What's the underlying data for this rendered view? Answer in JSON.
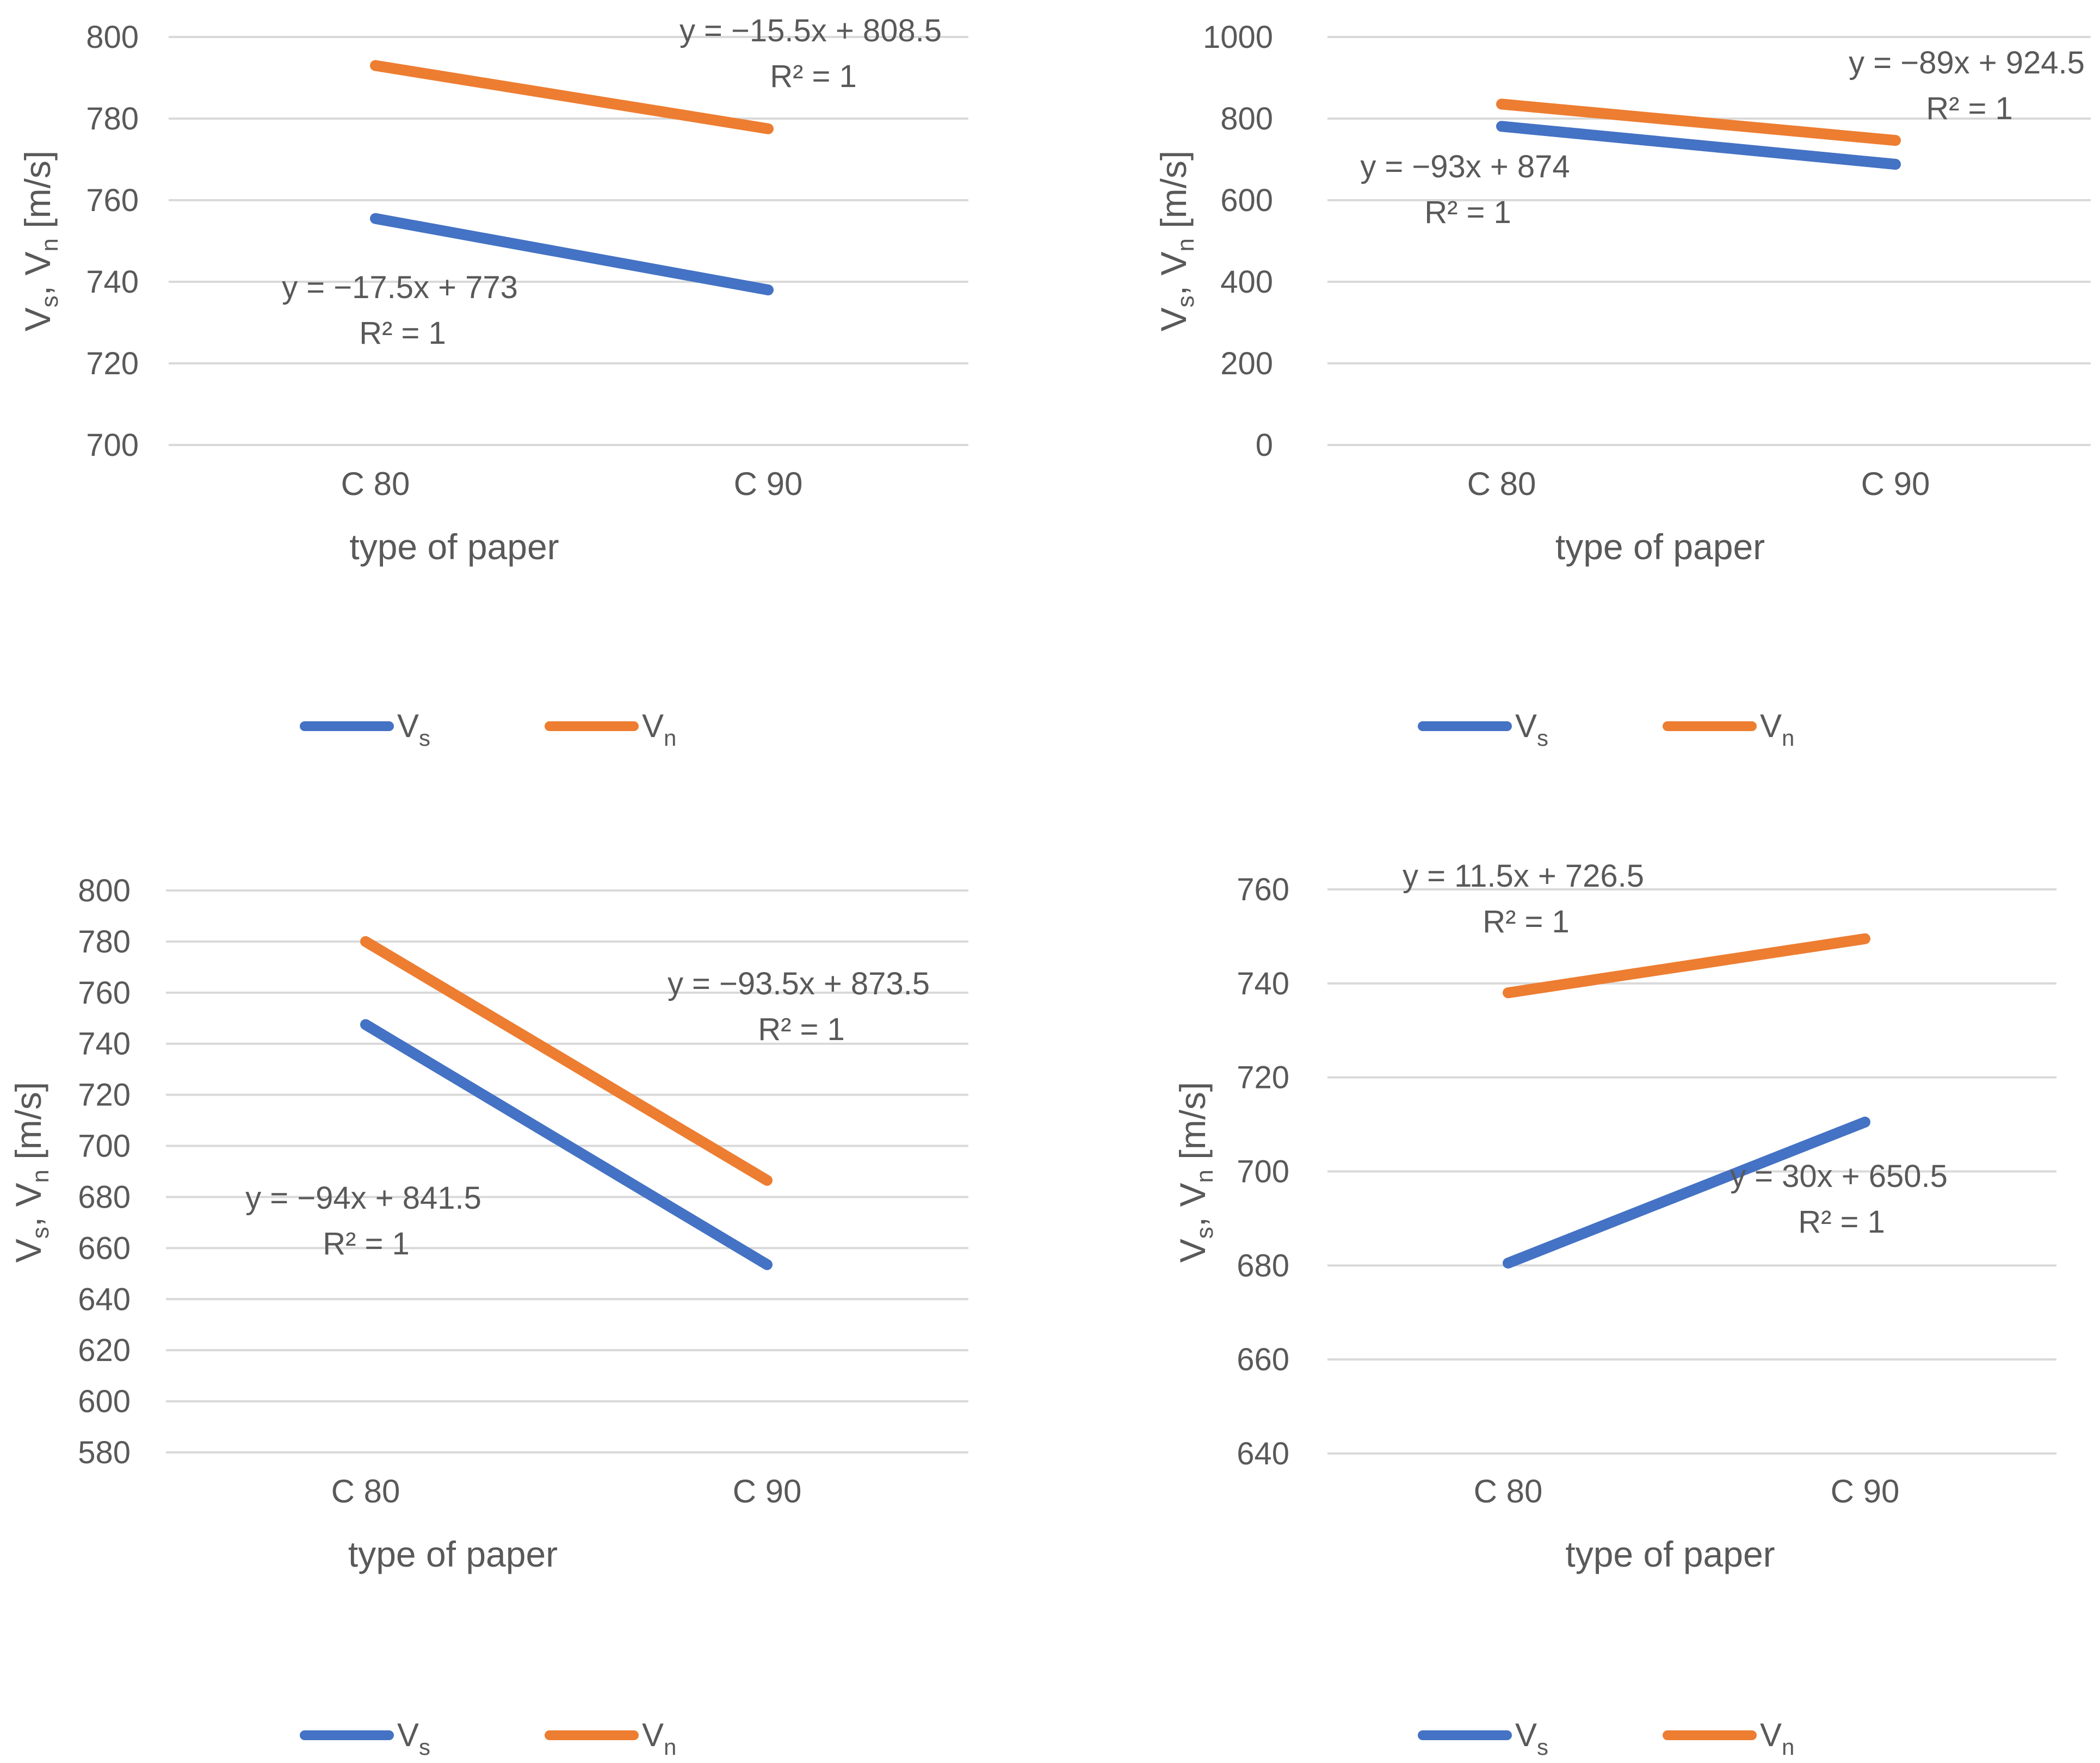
{
  "colors": {
    "vs": "#4472c4",
    "vn": "#ed7d31",
    "grid": "#d9d9d9",
    "text": "#595959"
  },
  "chart_data": [
    {
      "type": "line",
      "title": "",
      "categories": [
        "C 80",
        "C 90"
      ],
      "xlabel": "type of paper",
      "ylabel": {
        "main": "V",
        "sub1": "s",
        "mid": ", V",
        "sub2": "n",
        "unit": " [m/s]"
      },
      "ylim": [
        700,
        800
      ],
      "ystep": 20,
      "ticks": [
        "700",
        "720",
        "740",
        "760",
        "780",
        "800"
      ],
      "grid": true,
      "legend": {
        "position": "bottom",
        "entries": [
          {
            "main": "V",
            "sub": "s"
          },
          {
            "main": "V",
            "sub": "n"
          }
        ]
      },
      "series": [
        {
          "name": "Vs",
          "values": [
            755.5,
            738
          ],
          "trend": {
            "eq": "y = −17.5x + 773",
            "r2": "R² = 1"
          }
        },
        {
          "name": "Vn",
          "values": [
            793,
            777.5
          ],
          "trend": {
            "eq": "y = −15.5x + 808.5",
            "r2": "R² = 1"
          }
        }
      ]
    },
    {
      "type": "line",
      "title": "",
      "categories": [
        "C 80",
        "C 90"
      ],
      "xlabel": "type of paper",
      "ylabel": {
        "main": "V",
        "sub1": "s",
        "mid": ", V",
        "sub2": "n",
        "unit": " [m/s]"
      },
      "ylim": [
        0,
        1000
      ],
      "ystep": 200,
      "ticks": [
        "0",
        "200",
        "400",
        "600",
        "800",
        "1000"
      ],
      "grid": true,
      "legend": {
        "position": "bottom",
        "entries": [
          {
            "main": "V",
            "sub": "s"
          },
          {
            "main": "V",
            "sub": "n"
          }
        ]
      },
      "series": [
        {
          "name": "Vs",
          "values": [
            781,
            688
          ],
          "trend": {
            "eq": "y = −93x + 874",
            "r2": "R² = 1"
          }
        },
        {
          "name": "Vn",
          "values": [
            835.5,
            746.5
          ],
          "trend": {
            "eq": "y = −89x + 924.5",
            "r2": "R² = 1"
          }
        }
      ]
    },
    {
      "type": "line",
      "title": "",
      "categories": [
        "C 80",
        "C 90"
      ],
      "xlabel": "type of paper",
      "ylabel": {
        "main": "V",
        "sub1": "s",
        "mid": ", V",
        "sub2": "n",
        "unit": " [m/s]"
      },
      "ylim": [
        580,
        800
      ],
      "ystep": 20,
      "ticks": [
        "580",
        "600",
        "620",
        "640",
        "660",
        "680",
        "700",
        "720",
        "740",
        "760",
        "780",
        "800"
      ],
      "grid": true,
      "legend": {
        "position": "bottom",
        "entries": [
          {
            "main": "V",
            "sub": "s"
          },
          {
            "main": "V",
            "sub": "n"
          }
        ]
      },
      "series": [
        {
          "name": "Vs",
          "values": [
            747.5,
            653.5
          ],
          "trend": {
            "eq": "y = −94x + 841.5",
            "r2": "R² = 1"
          }
        },
        {
          "name": "Vn",
          "values": [
            780,
            686.5
          ],
          "trend": {
            "eq": "y = −93.5x + 873.5",
            "r2": "R² = 1"
          }
        }
      ]
    },
    {
      "type": "line",
      "title": "",
      "categories": [
        "C 80",
        "C 90"
      ],
      "xlabel": "type of paper",
      "ylabel": {
        "main": "V",
        "sub1": "s",
        "mid": ", V",
        "sub2": "n",
        "unit": " [m/s]"
      },
      "ylim": [
        640,
        760
      ],
      "ystep": 20,
      "ticks": [
        "640",
        "660",
        "680",
        "700",
        "720",
        "740",
        "760"
      ],
      "grid": true,
      "legend": {
        "position": "bottom",
        "entries": [
          {
            "main": "V",
            "sub": "s"
          },
          {
            "main": "V",
            "sub": "n"
          }
        ]
      },
      "series": [
        {
          "name": "Vs",
          "values": [
            680.5,
            710.5
          ],
          "trend": {
            "eq": "y = 30x + 650.5",
            "r2": "R² = 1"
          }
        },
        {
          "name": "Vn",
          "values": [
            738,
            749.5
          ],
          "trend": {
            "eq": "y = 11.5x + 726.5",
            "r2": "R² = 1"
          }
        }
      ]
    }
  ]
}
